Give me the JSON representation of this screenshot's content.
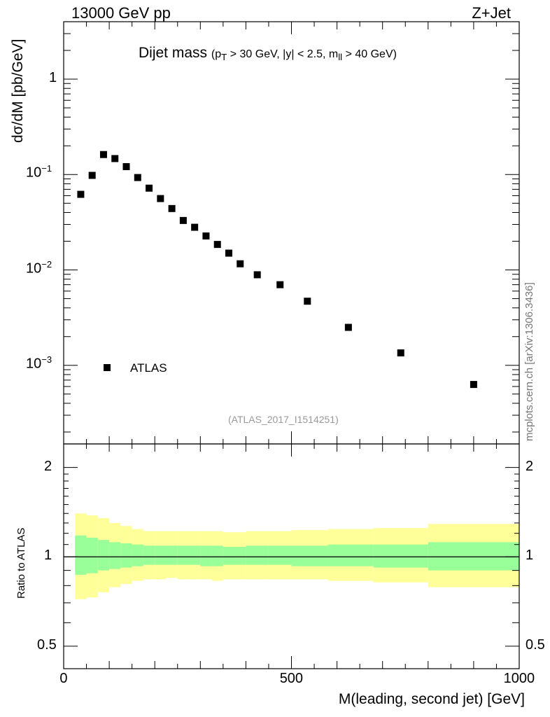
{
  "header": {
    "left": "13000 GeV pp",
    "right": "Z+Jet"
  },
  "title": {
    "main": "Dijet mass",
    "cuts": "(p_T > 30 GeV, |y| < 2.5, m_ll > 40 GeV)"
  },
  "analysis_id": "(ATLAS_2017_I1514251)",
  "side_label": "mcplots.cern.ch [arXiv:1306.3436]",
  "colors": {
    "data_marker": "#000000",
    "band_inner": "#99ff99",
    "band_outer": "#ffff99",
    "ratio_line": "#000000",
    "ref_text": "#999999"
  },
  "chart_data": [
    {
      "type": "scatter",
      "title": "Dijet mass",
      "subtitle": "(p_T > 30 GeV, |y| < 2.5, m_ll > 40 GeV)",
      "ylabel": "dσ/dM [pb/GeV]",
      "xlabel": "",
      "yscale": "log",
      "xlim": [
        0,
        1000
      ],
      "ylim": [
        0.00015,
        4
      ],
      "x_ticks": [
        0,
        500,
        1000
      ],
      "y_ticks": [
        0.001,
        0.01,
        0.1,
        1
      ],
      "y_tick_labels": [
        "10^-3",
        "10^-2",
        "10^-1",
        "1"
      ],
      "legend": {
        "position": "lower-left",
        "entries": [
          "ATLAS"
        ]
      },
      "series": [
        {
          "name": "ATLAS",
          "marker": "square",
          "x": [
            37.5,
            62.5,
            87.5,
            112.5,
            137.5,
            162.5,
            187.5,
            212.5,
            237.5,
            262.5,
            287.5,
            312.5,
            337.5,
            362.5,
            387.5,
            425,
            475,
            535,
            625,
            740,
            900
          ],
          "y": [
            0.062,
            0.098,
            0.162,
            0.147,
            0.121,
            0.093,
            0.072,
            0.056,
            0.044,
            0.033,
            0.028,
            0.0227,
            0.0185,
            0.015,
            0.0116,
            0.0089,
            0.007,
            0.0047,
            0.0025,
            0.00135,
            0.00063
          ]
        }
      ]
    },
    {
      "type": "area",
      "ylabel": "Ratio to ATLAS",
      "xlabel": "M(leading, second jet) [GeV]",
      "yscale": "log",
      "xlim": [
        0,
        1000
      ],
      "ylim": [
        0.42,
        2.4
      ],
      "x_ticks": [
        0,
        500,
        1000
      ],
      "y_ticks": [
        0.5,
        1,
        2
      ],
      "y_tick_labels": [
        "0.5",
        "1",
        "2"
      ],
      "reference_line": 1,
      "bins": [
        {
          "lo": 25,
          "hi": 50,
          "inner": [
            0.87,
            1.18
          ],
          "outer": [
            0.72,
            1.4
          ]
        },
        {
          "lo": 50,
          "hi": 75,
          "inner": [
            0.88,
            1.16
          ],
          "outer": [
            0.73,
            1.38
          ]
        },
        {
          "lo": 75,
          "hi": 100,
          "inner": [
            0.9,
            1.14
          ],
          "outer": [
            0.76,
            1.35
          ]
        },
        {
          "lo": 100,
          "hi": 125,
          "inner": [
            0.91,
            1.12
          ],
          "outer": [
            0.79,
            1.3
          ]
        },
        {
          "lo": 125,
          "hi": 150,
          "inner": [
            0.92,
            1.11
          ],
          "outer": [
            0.81,
            1.27
          ]
        },
        {
          "lo": 150,
          "hi": 175,
          "inner": [
            0.93,
            1.1
          ],
          "outer": [
            0.83,
            1.24
          ]
        },
        {
          "lo": 175,
          "hi": 200,
          "inner": [
            0.94,
            1.09
          ],
          "outer": [
            0.84,
            1.22
          ]
        },
        {
          "lo": 200,
          "hi": 225,
          "inner": [
            0.94,
            1.09
          ],
          "outer": [
            0.84,
            1.22
          ]
        },
        {
          "lo": 225,
          "hi": 250,
          "inner": [
            0.94,
            1.09
          ],
          "outer": [
            0.85,
            1.22
          ]
        },
        {
          "lo": 250,
          "hi": 275,
          "inner": [
            0.94,
            1.09
          ],
          "outer": [
            0.84,
            1.22
          ]
        },
        {
          "lo": 275,
          "hi": 300,
          "inner": [
            0.94,
            1.09
          ],
          "outer": [
            0.84,
            1.22
          ]
        },
        {
          "lo": 300,
          "hi": 325,
          "inner": [
            0.93,
            1.09
          ],
          "outer": [
            0.84,
            1.22
          ]
        },
        {
          "lo": 325,
          "hi": 350,
          "inner": [
            0.93,
            1.09
          ],
          "outer": [
            0.83,
            1.22
          ]
        },
        {
          "lo": 350,
          "hi": 400,
          "inner": [
            0.94,
            1.08
          ],
          "outer": [
            0.84,
            1.21
          ]
        },
        {
          "lo": 400,
          "hi": 450,
          "inner": [
            0.94,
            1.09
          ],
          "outer": [
            0.84,
            1.22
          ]
        },
        {
          "lo": 450,
          "hi": 500,
          "inner": [
            0.94,
            1.09
          ],
          "outer": [
            0.84,
            1.22
          ]
        },
        {
          "lo": 500,
          "hi": 580,
          "inner": [
            0.93,
            1.09
          ],
          "outer": [
            0.84,
            1.23
          ]
        },
        {
          "lo": 580,
          "hi": 680,
          "inner": [
            0.93,
            1.1
          ],
          "outer": [
            0.83,
            1.24
          ]
        },
        {
          "lo": 680,
          "hi": 800,
          "inner": [
            0.92,
            1.1
          ],
          "outer": [
            0.82,
            1.25
          ]
        },
        {
          "lo": 800,
          "hi": 1000,
          "inner": [
            0.9,
            1.12
          ],
          "outer": [
            0.79,
            1.29
          ]
        }
      ]
    }
  ]
}
